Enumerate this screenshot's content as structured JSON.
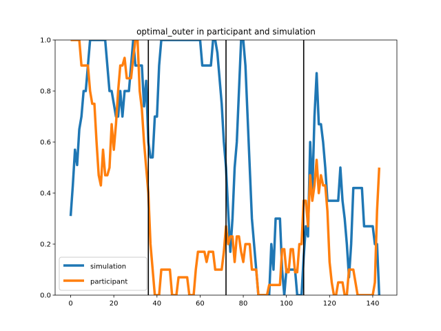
{
  "chart_data": {
    "type": "line",
    "title": "optimal_outer in participant and simulation",
    "xlabel": "",
    "ylabel": "",
    "xlim": [
      -7.2,
      151.2
    ],
    "ylim": [
      0,
      1
    ],
    "xticks": [
      0,
      20,
      40,
      60,
      80,
      100,
      120,
      140
    ],
    "yticks": [
      0.0,
      0.2,
      0.4,
      0.6,
      0.8,
      1.0
    ],
    "ytick_labels": [
      "0.0",
      "0.2",
      "0.4",
      "0.6",
      "0.8",
      "1.0"
    ],
    "vlines": [
      36,
      72,
      108
    ],
    "grid": false,
    "legend_position": "lower-left",
    "series": [
      {
        "name": "simulation",
        "color": "#1f77b4",
        "points": [
          [
            0,
            0.31
          ],
          [
            1,
            0.43
          ],
          [
            2,
            0.57
          ],
          [
            3,
            0.51
          ],
          [
            4,
            0.65
          ],
          [
            5,
            0.7
          ],
          [
            6,
            0.8
          ],
          [
            7,
            0.8
          ],
          [
            8,
            0.9
          ],
          [
            9,
            1.0
          ],
          [
            10,
            1.0
          ],
          [
            12,
            1.0
          ],
          [
            14,
            1.0
          ],
          [
            16,
            1.0
          ],
          [
            17,
            0.9
          ],
          [
            18,
            0.8
          ],
          [
            19,
            0.8
          ],
          [
            20,
            0.75
          ],
          [
            21,
            0.7
          ],
          [
            22,
            0.7
          ],
          [
            23,
            0.8
          ],
          [
            24,
            0.7
          ],
          [
            25,
            0.8
          ],
          [
            26,
            0.8
          ],
          [
            27,
            0.8
          ],
          [
            28,
            0.9
          ],
          [
            29,
            1.0
          ],
          [
            30,
            0.9
          ],
          [
            31,
            0.9
          ],
          [
            32,
            0.9
          ],
          [
            33,
            0.9
          ],
          [
            34,
            0.74
          ],
          [
            35,
            0.84
          ],
          [
            36,
            0.6
          ],
          [
            37,
            0.54
          ],
          [
            38,
            0.54
          ],
          [
            39,
            0.7
          ],
          [
            40,
            0.7
          ],
          [
            41,
            0.9
          ],
          [
            42,
            1.0
          ],
          [
            44,
            1.0
          ],
          [
            50,
            1.0
          ],
          [
            55,
            1.0
          ],
          [
            60,
            1.0
          ],
          [
            61,
            0.9
          ],
          [
            62,
            0.9
          ],
          [
            63,
            0.9
          ],
          [
            64,
            0.9
          ],
          [
            65,
            0.9
          ],
          [
            66,
            1.0
          ],
          [
            67,
            1.0
          ],
          [
            68,
            0.95
          ],
          [
            69,
            0.85
          ],
          [
            70,
            0.75
          ],
          [
            71,
            0.6
          ],
          [
            72,
            0.5
          ],
          [
            73,
            0.33
          ],
          [
            74,
            0.17
          ],
          [
            75,
            0.3
          ],
          [
            76,
            0.5
          ],
          [
            77,
            0.6
          ],
          [
            78,
            0.8
          ],
          [
            79,
            1.0
          ],
          [
            80,
            1.0
          ],
          [
            81,
            0.9
          ],
          [
            82,
            0.7
          ],
          [
            83,
            0.5
          ],
          [
            84,
            0.3
          ],
          [
            85,
            0.2
          ],
          [
            86,
            0.1
          ],
          [
            87,
            0.0
          ],
          [
            88,
            0.0
          ],
          [
            89,
            0.0
          ],
          [
            90,
            0.0
          ],
          [
            91,
            0.0
          ],
          [
            92,
            0.0
          ],
          [
            93,
            0.2
          ],
          [
            94,
            0.1
          ],
          [
            95,
            0.3
          ],
          [
            96,
            0.3
          ],
          [
            97,
            0.3
          ],
          [
            98,
            0.1
          ],
          [
            99,
            0.0
          ],
          [
            100,
            0.1
          ],
          [
            101,
            0.1
          ],
          [
            102,
            0.1
          ],
          [
            103,
            0.1
          ],
          [
            104,
            0.1
          ],
          [
            105,
            0.0
          ],
          [
            106,
            0.0
          ],
          [
            107,
            0.0
          ],
          [
            108,
            0.15
          ],
          [
            109,
            0.27
          ],
          [
            110,
            0.23
          ],
          [
            111,
            0.6
          ],
          [
            112,
            0.4
          ],
          [
            113,
            0.7
          ],
          [
            114,
            0.87
          ],
          [
            115,
            0.67
          ],
          [
            116,
            0.67
          ],
          [
            117,
            0.6
          ],
          [
            118,
            0.5
          ],
          [
            119,
            0.37
          ],
          [
            120,
            0.37
          ],
          [
            121,
            0.37
          ],
          [
            122,
            0.37
          ],
          [
            123,
            0.37
          ],
          [
            124,
            0.37
          ],
          [
            125,
            0.5
          ],
          [
            126,
            0.37
          ],
          [
            127,
            0.3
          ],
          [
            128,
            0.2
          ],
          [
            129,
            0.07
          ],
          [
            130,
            0.2
          ],
          [
            131,
            0.42
          ],
          [
            132,
            0.42
          ],
          [
            133,
            0.42
          ],
          [
            134,
            0.42
          ],
          [
            135,
            0.42
          ],
          [
            136,
            0.27
          ],
          [
            137,
            0.27
          ],
          [
            138,
            0.27
          ],
          [
            139,
            0.27
          ],
          [
            140,
            0.27
          ],
          [
            141,
            0.2
          ],
          [
            142,
            0.2
          ],
          [
            143,
            0.0
          ]
        ]
      },
      {
        "name": "participant",
        "color": "#ff7f0e",
        "points": [
          [
            0,
            1.0
          ],
          [
            2,
            1.0
          ],
          [
            3,
            1.0
          ],
          [
            4,
            1.0
          ],
          [
            5,
            0.9
          ],
          [
            6,
            0.9
          ],
          [
            7,
            0.9
          ],
          [
            8,
            0.9
          ],
          [
            9,
            0.8
          ],
          [
            10,
            0.75
          ],
          [
            11,
            0.75
          ],
          [
            12,
            0.6
          ],
          [
            13,
            0.47
          ],
          [
            14,
            0.43
          ],
          [
            15,
            0.57
          ],
          [
            16,
            0.47
          ],
          [
            17,
            0.47
          ],
          [
            18,
            0.5
          ],
          [
            19,
            0.67
          ],
          [
            20,
            0.57
          ],
          [
            21,
            0.67
          ],
          [
            22,
            0.8
          ],
          [
            23,
            0.9
          ],
          [
            24,
            0.9
          ],
          [
            25,
            0.93
          ],
          [
            26,
            0.85
          ],
          [
            27,
            0.85
          ],
          [
            28,
            0.85
          ],
          [
            29,
            0.93
          ],
          [
            30,
            1.0
          ],
          [
            31,
            1.0
          ],
          [
            32,
            0.8
          ],
          [
            33,
            0.73
          ],
          [
            34,
            0.6
          ],
          [
            35,
            0.5
          ],
          [
            36,
            0.4
          ],
          [
            37,
            0.2
          ],
          [
            38,
            0.1
          ],
          [
            39,
            0.0
          ],
          [
            40,
            0.0
          ],
          [
            41,
            0.0
          ],
          [
            42,
            0.1
          ],
          [
            43,
            0.1
          ],
          [
            44,
            0.1
          ],
          [
            45,
            0.1
          ],
          [
            46,
            0.1
          ],
          [
            47,
            0.0
          ],
          [
            48,
            0.0
          ],
          [
            49,
            0.0
          ],
          [
            50,
            0.07
          ],
          [
            51,
            0.07
          ],
          [
            52,
            0.07
          ],
          [
            53,
            0.07
          ],
          [
            54,
            0.07
          ],
          [
            55,
            0.0
          ],
          [
            56,
            0.0
          ],
          [
            57,
            0.0
          ],
          [
            58,
            0.1
          ],
          [
            59,
            0.17
          ],
          [
            60,
            0.17
          ],
          [
            61,
            0.17
          ],
          [
            62,
            0.17
          ],
          [
            63,
            0.13
          ],
          [
            64,
            0.17
          ],
          [
            65,
            0.17
          ],
          [
            66,
            0.17
          ],
          [
            67,
            0.1
          ],
          [
            68,
            0.1
          ],
          [
            69,
            0.1
          ],
          [
            70,
            0.1
          ],
          [
            71,
            0.17
          ],
          [
            72,
            0.27
          ],
          [
            73,
            0.2
          ],
          [
            74,
            0.23
          ],
          [
            75,
            0.23
          ],
          [
            76,
            0.13
          ],
          [
            77,
            0.23
          ],
          [
            78,
            0.23
          ],
          [
            79,
            0.17
          ],
          [
            80,
            0.13
          ],
          [
            81,
            0.2
          ],
          [
            82,
            0.2
          ],
          [
            83,
            0.2
          ],
          [
            84,
            0.1
          ],
          [
            85,
            0.1
          ],
          [
            86,
            0.1
          ],
          [
            87,
            0.0
          ],
          [
            88,
            0.0
          ],
          [
            89,
            0.0
          ],
          [
            90,
            0.0
          ],
          [
            91,
            0.0
          ],
          [
            92,
            0.04
          ],
          [
            93,
            0.04
          ],
          [
            94,
            0.04
          ],
          [
            95,
            0.04
          ],
          [
            96,
            0.04
          ],
          [
            97,
            0.04
          ],
          [
            98,
            0.18
          ],
          [
            99,
            0.18
          ],
          [
            100,
            0.09
          ],
          [
            101,
            0.09
          ],
          [
            102,
            0.18
          ],
          [
            103,
            0.18
          ],
          [
            104,
            0.09
          ],
          [
            105,
            0.09
          ],
          [
            106,
            0.2
          ],
          [
            107,
            0.2
          ],
          [
            108,
            0.37
          ],
          [
            109,
            0.37
          ],
          [
            110,
            0.27
          ],
          [
            111,
            0.47
          ],
          [
            112,
            0.37
          ],
          [
            113,
            0.43
          ],
          [
            114,
            0.53
          ],
          [
            115,
            0.4
          ],
          [
            116,
            0.47
          ],
          [
            117,
            0.43
          ],
          [
            118,
            0.43
          ],
          [
            119,
            0.33
          ],
          [
            120,
            0.13
          ],
          [
            121,
            0.05
          ],
          [
            122,
            0.0
          ],
          [
            123,
            0.0
          ],
          [
            124,
            0.05
          ],
          [
            125,
            0.05
          ],
          [
            126,
            0.05
          ],
          [
            127,
            0.0
          ],
          [
            128,
            0.0
          ],
          [
            129,
            0.1
          ],
          [
            130,
            0.1
          ],
          [
            131,
            0.1
          ],
          [
            132,
            0.05
          ],
          [
            133,
            0.0
          ],
          [
            134,
            0.0
          ],
          [
            135,
            0.0
          ],
          [
            136,
            0.0
          ],
          [
            137,
            0.0
          ],
          [
            138,
            0.0
          ],
          [
            139,
            0.0
          ],
          [
            140,
            0.0
          ],
          [
            141,
            0.05
          ],
          [
            142,
            0.33
          ],
          [
            143,
            0.5
          ]
        ]
      }
    ]
  }
}
